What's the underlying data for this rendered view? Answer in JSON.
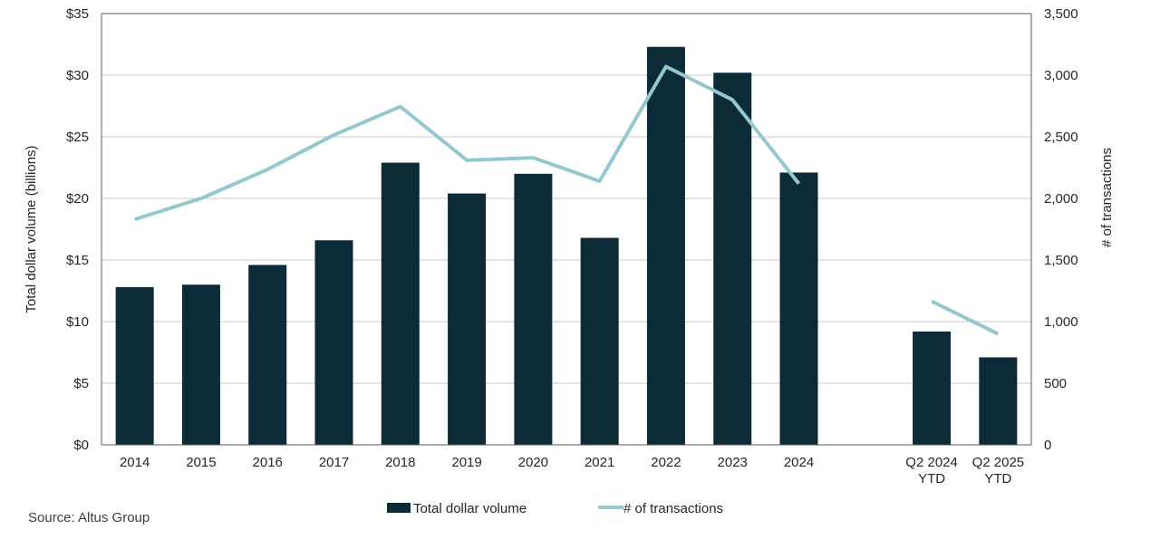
{
  "chart_data": {
    "type": "bar",
    "categories": [
      "2014",
      "2015",
      "2016",
      "2017",
      "2018",
      "2019",
      "2020",
      "2021",
      "2022",
      "2023",
      "2024",
      "",
      "Q2 2024\nYTD",
      "Q2 2025\nYTD"
    ],
    "series": [
      {
        "name": "Total dollar volume",
        "type": "bar",
        "axis": "left",
        "color": "#0d2b36",
        "values": [
          12.8,
          13.0,
          14.6,
          16.6,
          22.9,
          20.4,
          22.0,
          16.8,
          32.3,
          30.2,
          22.1,
          null,
          9.2,
          7.1
        ]
      },
      {
        "name": "# of transactions",
        "type": "line",
        "axis": "right",
        "color": "#93c8cf",
        "values": [
          1830,
          2000,
          2235,
          2515,
          2745,
          2310,
          2330,
          2140,
          3070,
          2800,
          2120,
          null,
          1165,
          900
        ]
      }
    ],
    "ylabel": "Total dollar volume (billions)",
    "y2label": "# of transactions",
    "ylim": [
      0,
      35
    ],
    "y2lim": [
      0,
      3500
    ],
    "yticks": [
      "$0",
      "$5",
      "$10",
      "$15",
      "$20",
      "$25",
      "$30",
      "$35"
    ],
    "y2ticks": [
      "0",
      "500",
      "1,000",
      "1,500",
      "2,000",
      "2,500",
      "3,000",
      "3,500"
    ],
    "grid": true,
    "legend_position": "bottom-center"
  },
  "source": "Source:  Altus Group"
}
